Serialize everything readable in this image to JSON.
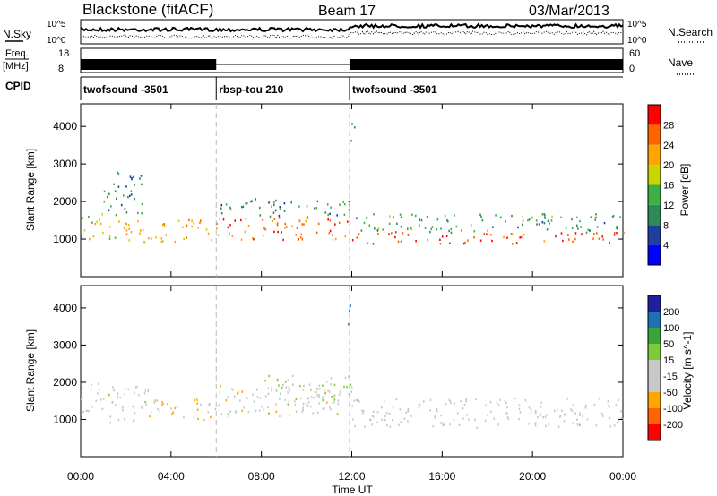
{
  "header": {
    "station": "Blackstone (fitACF)",
    "beam": "Beam 17",
    "date": "03/Mar/2013"
  },
  "noise_panel": {
    "left_label": "N.Sky",
    "right_label": "N.Search",
    "ticks": [
      "10^5",
      "10^0"
    ]
  },
  "freq_panel": {
    "left_label_1": "Freq.",
    "left_label_2": "[MHz]",
    "left_ticks": [
      "18",
      "8"
    ],
    "right_label": "Nave",
    "right_ticks": [
      "60",
      "0"
    ]
  },
  "cpid": {
    "label": "CPID",
    "segments": [
      {
        "name": "twofsound -3501",
        "start_h": 0,
        "end_h": 6
      },
      {
        "name": "rbsp-tou 210",
        "start_h": 6,
        "end_h": 11.9
      },
      {
        "name": "twofsound -3501",
        "start_h": 11.9,
        "end_h": 24
      }
    ]
  },
  "x_axis": {
    "label": "Time UT",
    "ticks": [
      "00:00",
      "04:00",
      "08:00",
      "12:00",
      "16:00",
      "20:00",
      "00:00"
    ]
  },
  "colors": {
    "power": [
      "#0000ff",
      "#1f3fa0",
      "#2e8b57",
      "#3cb043",
      "#c8d600",
      "#ffa500",
      "#ff6400",
      "#ff0000"
    ],
    "velocity": [
      "#ff0000",
      "#ff6400",
      "#ffa500",
      "#c8c8c8",
      "#c8c8c8",
      "#7ccc3a",
      "#3aa33a",
      "#1f6fb5",
      "#1f1fa0"
    ]
  },
  "chart_data": [
    {
      "type": "heatmap",
      "title": "Power",
      "ylabel": "Slant Range [km]",
      "xlabel": "",
      "xlim": [
        0,
        24
      ],
      "ylim": [
        0,
        4600
      ],
      "y_ticks": [
        "1000",
        "2000",
        "3000",
        "4000"
      ],
      "colorbar": {
        "label": "Power [dB]",
        "ticks": [
          "4",
          "8",
          "12",
          "16",
          "20",
          "24",
          "28"
        ],
        "range": [
          0,
          32
        ]
      },
      "regions": [
        {
          "t0": 0,
          "t1": 2,
          "r0": 1000,
          "r1": 1700,
          "value": 18
        },
        {
          "t0": 1,
          "t1": 2.8,
          "r0": 1700,
          "r1": 2800,
          "value": 10
        },
        {
          "t0": 2,
          "t1": 6,
          "r0": 950,
          "r1": 1550,
          "value": 22
        },
        {
          "t0": 6,
          "t1": 12,
          "r0": 1000,
          "r1": 1600,
          "value": 26
        },
        {
          "t0": 6,
          "t1": 12,
          "r0": 1600,
          "r1": 2100,
          "value": 10
        },
        {
          "t0": 12,
          "t1": 24,
          "r0": 900,
          "r1": 1200,
          "value": 28
        },
        {
          "t0": 12,
          "t1": 24,
          "r0": 1200,
          "r1": 1700,
          "value": 12
        },
        {
          "t0": 11.8,
          "t1": 12.1,
          "r0": 3500,
          "r1": 4200,
          "value": 14
        }
      ]
    },
    {
      "type": "heatmap",
      "title": "Velocity",
      "ylabel": "Slant Range [km]",
      "xlabel": "Time UT",
      "xlim": [
        0,
        24
      ],
      "ylim": [
        0,
        4600
      ],
      "y_ticks": [
        "1000",
        "2000",
        "3000",
        "4000"
      ],
      "colorbar": {
        "label": "Velocity [m s^-1]",
        "ticks": [
          "200",
          "100",
          "50",
          "15",
          "-15",
          "-50",
          "-100",
          "-200"
        ],
        "range": [
          -250,
          250
        ]
      },
      "regions": [
        {
          "t0": 0,
          "t1": 3,
          "r0": 900,
          "r1": 2000,
          "value": 0
        },
        {
          "t0": 3,
          "t1": 6,
          "r0": 1000,
          "r1": 1600,
          "value": -80
        },
        {
          "t0": 6,
          "t1": 11.5,
          "r0": 1100,
          "r1": 2000,
          "value": -60
        },
        {
          "t0": 8,
          "t1": 12,
          "r0": 1400,
          "r1": 2200,
          "value": 20
        },
        {
          "t0": 12,
          "t1": 24,
          "r0": 800,
          "r1": 1600,
          "value": 0
        },
        {
          "t0": 11.8,
          "t1": 12.1,
          "r0": 3500,
          "r1": 4200,
          "value": 150
        }
      ]
    }
  ]
}
